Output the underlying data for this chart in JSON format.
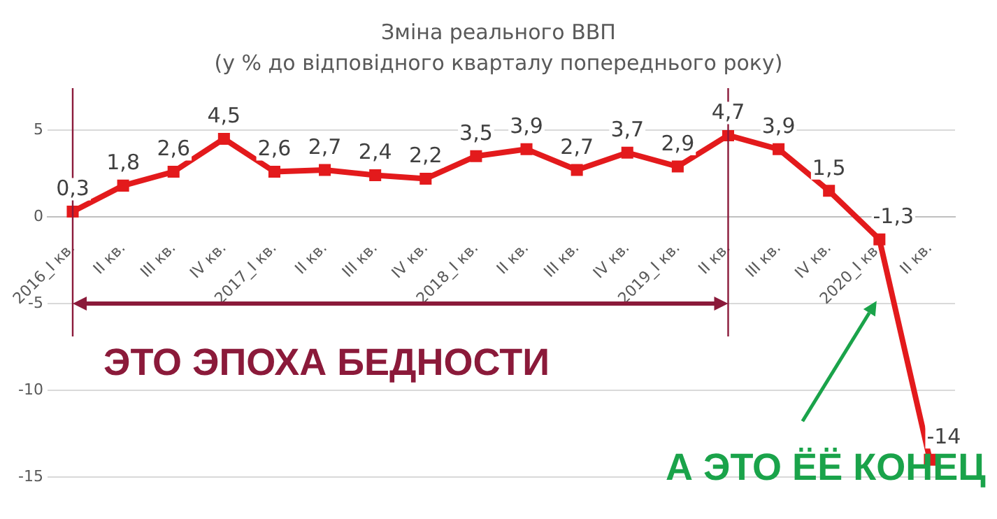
{
  "chart_data": {
    "type": "line",
    "title": "Зміна реального ВВП",
    "subtitle": "(у % до відповідного кварталу попереднього року)",
    "categories": [
      "2016_I кв.",
      "II кв.",
      "III кв.",
      "IV кв.",
      "2017_I кв.",
      "II кв.",
      "III кв.",
      "IV кв.",
      "2018_I кв.",
      "II кв.",
      "III кв.",
      "IV кв.",
      "2019_I кв.",
      "II кв.",
      "III кв.",
      "IV кв.",
      "2020_I кв.",
      "II кв."
    ],
    "series": [
      {
        "color": "#e31a1c",
        "values": [
          0.3,
          1.8,
          2.6,
          4.5,
          2.6,
          2.7,
          2.4,
          2.2,
          3.5,
          3.9,
          2.7,
          3.7,
          2.9,
          4.7,
          3.9,
          1.5,
          -1.3,
          -14
        ],
        "value_labels": [
          "0,3",
          "1,8",
          "2,6",
          "4,5",
          "2,6",
          "2,7",
          "2,4",
          "2,2",
          "3,5",
          "3,9",
          "2,7",
          "3,7",
          "2,9",
          "4,7",
          "3,9",
          "1,5",
          "-1,3",
          "-14"
        ]
      }
    ],
    "ylim": [
      -15,
      5
    ],
    "yticks": [
      -15,
      -10,
      -5,
      0,
      5
    ],
    "grid": "y",
    "legend": false,
    "marker": "square",
    "line_style": "solid",
    "ref_lines": [
      {
        "axis": "x",
        "value": "2016_I кв.",
        "color": "#8b1a3a"
      }
    ],
    "annotations": [
      "ЭТО ЭПОХА БЕДНОСТИ",
      "А ЭТО ЁЁ КОНЕЦ"
    ]
  }
}
